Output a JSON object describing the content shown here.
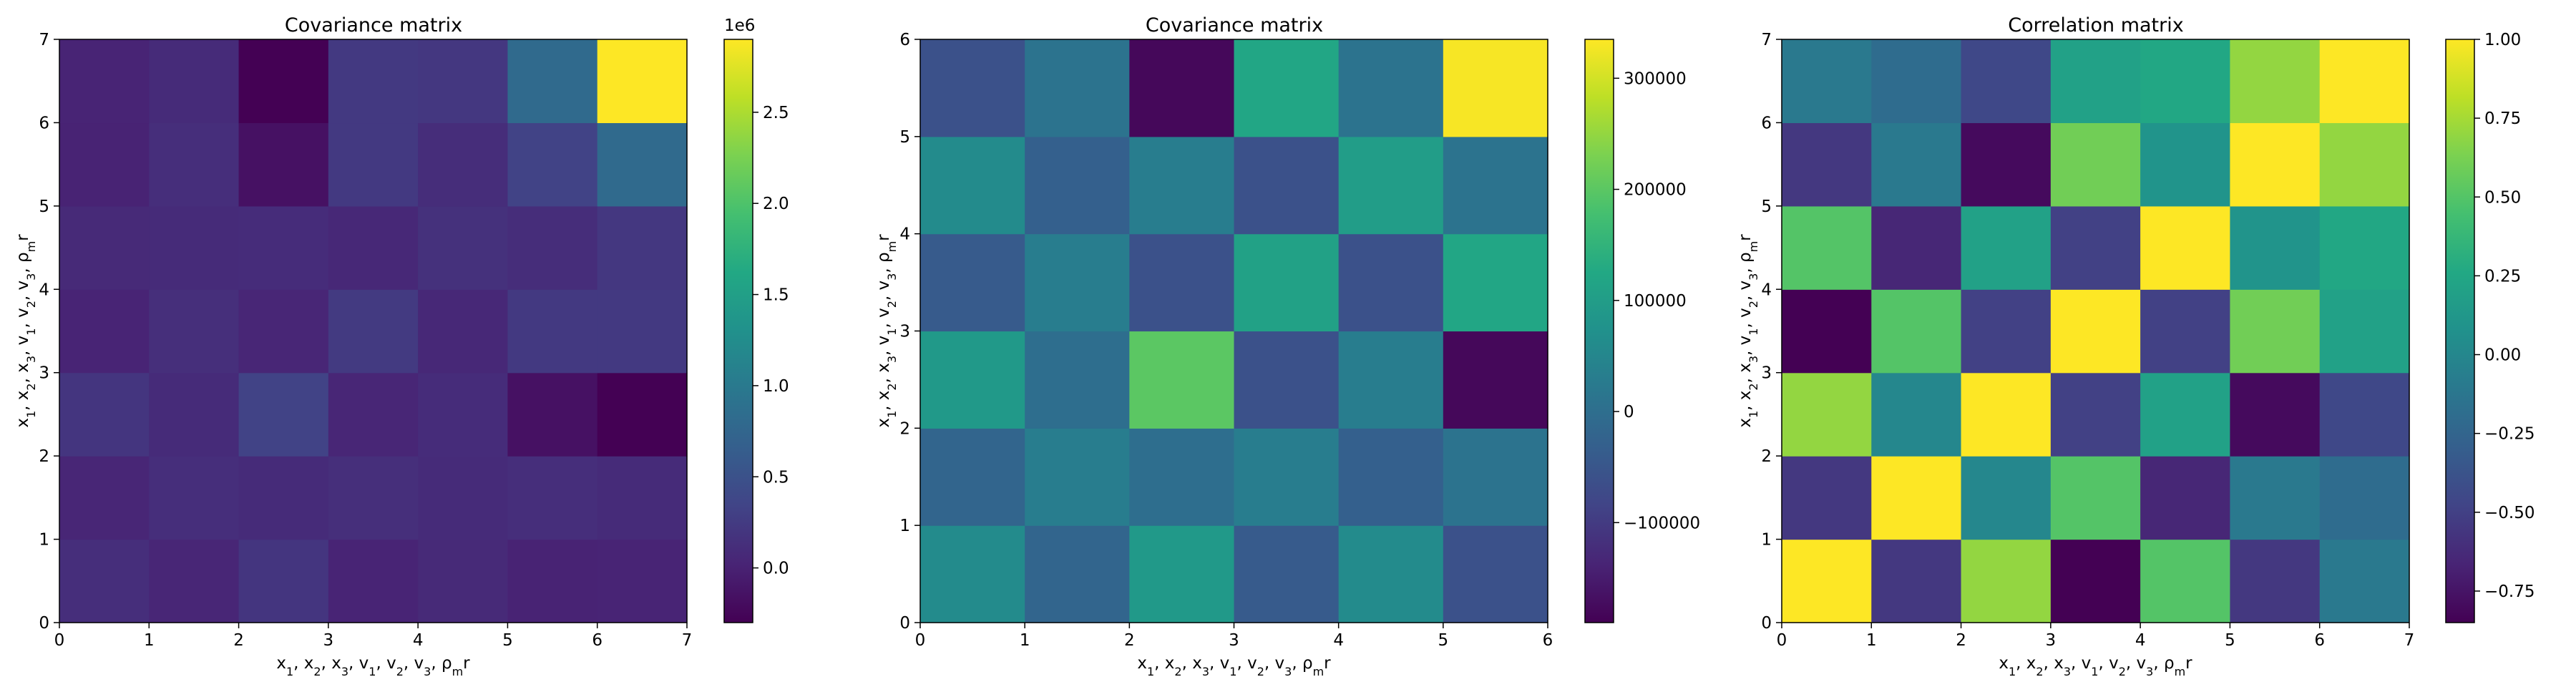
{
  "figure": {
    "background": "#ffffff",
    "colormap": "viridis"
  },
  "chart_data": [
    {
      "type": "heatmap",
      "title": "Covariance matrix",
      "xlabel": [
        "x",
        "1",
        ", ",
        "x",
        "2",
        ", ",
        "x",
        "3",
        ", ",
        "v",
        "1",
        ", ",
        "v",
        "2",
        ", ",
        "v",
        "3",
        ", ",
        "ρ",
        "m",
        "r"
      ],
      "ylabel": [
        "x",
        "1",
        ", ",
        "x",
        "2",
        ", ",
        "x",
        "3",
        ", ",
        "v",
        "1",
        ", ",
        "v",
        "2",
        ", ",
        "v",
        "3",
        ", ",
        "ρ",
        "m",
        "r"
      ],
      "x_ticks": [
        "0",
        "1",
        "2",
        "3",
        "4",
        "5",
        "6",
        "7"
      ],
      "y_ticks": [
        "0",
        "1",
        "2",
        "3",
        "4",
        "5",
        "6",
        "7"
      ],
      "xlim": [
        0,
        7
      ],
      "ylim": [
        0,
        7
      ],
      "colorbar": {
        "vmin": -300000,
        "vmax": 2900000,
        "ticks": [
          0,
          500000,
          1000000,
          1500000,
          2000000,
          2500000
        ],
        "tick_labels": [
          "0.0",
          "0.5",
          "1.0",
          "1.5",
          "2.0",
          "2.5"
        ],
        "offset_label": "1e6"
      },
      "matrix_rows_bottom_to_top": [
        [
          120000,
          40000,
          190000,
          20000,
          80000,
          10000,
          20000
        ],
        [
          40000,
          120000,
          90000,
          130000,
          90000,
          120000,
          90000
        ],
        [
          190000,
          90000,
          330000,
          40000,
          100000,
          -150000,
          -300000
        ],
        [
          20000,
          130000,
          40000,
          240000,
          60000,
          230000,
          230000
        ],
        [
          80000,
          90000,
          100000,
          60000,
          150000,
          110000,
          210000
        ],
        [
          10000,
          120000,
          -150000,
          230000,
          110000,
          330000,
          800000
        ],
        [
          20000,
          90000,
          -300000,
          230000,
          210000,
          800000,
          2900000
        ]
      ]
    },
    {
      "type": "heatmap",
      "title": "Covariance matrix",
      "xlabel": [
        "x",
        "1",
        ", ",
        "x",
        "2",
        ", ",
        "x",
        "3",
        ", ",
        "v",
        "1",
        ", ",
        "v",
        "2",
        ", ",
        "v",
        "3",
        ", ",
        "ρ",
        "m",
        "r"
      ],
      "ylabel": [
        "x",
        "1",
        ", ",
        "x",
        "2",
        ", ",
        "x",
        "3",
        ", ",
        "v",
        "1",
        ", ",
        "v",
        "2",
        ", ",
        "v",
        "3",
        ", ",
        "ρ",
        "m",
        "r"
      ],
      "x_ticks": [
        "0",
        "1",
        "2",
        "3",
        "4",
        "5",
        "6"
      ],
      "y_ticks": [
        "0",
        "1",
        "2",
        "3",
        "4",
        "5",
        "6"
      ],
      "xlim": [
        0,
        6
      ],
      "ylim": [
        0,
        6
      ],
      "colorbar": {
        "vmin": -190000,
        "vmax": 335000,
        "ticks": [
          -100000,
          0,
          100000,
          200000,
          300000
        ],
        "tick_labels": [
          "−100000",
          "0",
          "100000",
          "200000",
          "300000"
        ],
        "offset_label": ""
      },
      "matrix_rows_bottom_to_top": [
        [
          60000,
          -20000,
          90000,
          -40000,
          60000,
          -60000
        ],
        [
          -20000,
          30000,
          0,
          30000,
          -30000,
          10000
        ],
        [
          90000,
          0,
          200000,
          -60000,
          30000,
          -180000
        ],
        [
          -40000,
          30000,
          -60000,
          110000,
          -60000,
          120000
        ],
        [
          60000,
          -30000,
          30000,
          -60000,
          100000,
          10000
        ],
        [
          -60000,
          10000,
          -180000,
          120000,
          10000,
          330000
        ]
      ]
    },
    {
      "type": "heatmap",
      "title": "Correlation matrix",
      "xlabel": [
        "x",
        "1",
        ", ",
        "x",
        "2",
        ", ",
        "x",
        "3",
        ", ",
        "v",
        "1",
        ", ",
        "v",
        "2",
        ", ",
        "v",
        "3",
        ", ",
        "ρ",
        "m",
        "r"
      ],
      "ylabel": [
        "x",
        "1",
        ", ",
        "x",
        "2",
        ", ",
        "x",
        "3",
        ", ",
        "v",
        "1",
        ", ",
        "v",
        "2",
        ", ",
        "v",
        "3",
        ", ",
        "ρ",
        "m",
        "r"
      ],
      "x_ticks": [
        "0",
        "1",
        "2",
        "3",
        "4",
        "5",
        "6",
        "7"
      ],
      "y_ticks": [
        "0",
        "1",
        "2",
        "3",
        "4",
        "5",
        "6",
        "7"
      ],
      "xlim": [
        0,
        7
      ],
      "ylim": [
        0,
        7
      ],
      "colorbar": {
        "vmin": -0.85,
        "vmax": 1.0,
        "ticks": [
          -0.75,
          -0.5,
          -0.25,
          0,
          0.25,
          0.5,
          0.75,
          1.0
        ],
        "tick_labels": [
          "−0.75",
          "−0.50",
          "−0.25",
          "0.00",
          "0.25",
          "0.50",
          "0.75",
          "1.00"
        ],
        "offset_label": ""
      },
      "matrix_rows_bottom_to_top": [
        [
          1.0,
          -0.55,
          0.7,
          -0.85,
          0.5,
          -0.55,
          -0.1
        ],
        [
          -0.55,
          1.0,
          0.0,
          0.5,
          -0.65,
          -0.1,
          -0.2
        ],
        [
          0.7,
          0.0,
          1.0,
          -0.5,
          0.2,
          -0.8,
          -0.45
        ],
        [
          -0.85,
          0.5,
          -0.5,
          1.0,
          -0.5,
          0.6,
          0.2
        ],
        [
          0.5,
          -0.65,
          0.2,
          -0.5,
          1.0,
          0.1,
          0.25
        ],
        [
          -0.55,
          -0.1,
          -0.8,
          0.6,
          0.1,
          1.0,
          0.7
        ],
        [
          -0.1,
          -0.2,
          -0.45,
          0.2,
          0.25,
          0.7,
          1.0
        ]
      ]
    }
  ]
}
